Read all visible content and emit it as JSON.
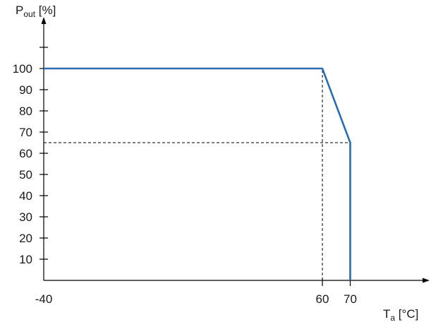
{
  "chart_data": {
    "type": "line",
    "title": "",
    "xlabel": {
      "main": "T",
      "sub": "a",
      "unit": " [°C]"
    },
    "ylabel": {
      "main": "P",
      "sub": "out",
      "unit": " [%]"
    },
    "xlim": [
      -40,
      80
    ],
    "ylim": [
      0,
      115
    ],
    "x_ticks": [
      -40,
      60,
      70
    ],
    "x_tick_labels": [
      "-40",
      "60",
      "70"
    ],
    "y_ticks": [
      10,
      20,
      30,
      40,
      50,
      60,
      70,
      80,
      90,
      100,
      110
    ],
    "y_tick_labels": [
      "10",
      "20",
      "30",
      "40",
      "50",
      "60",
      "70",
      "80",
      "90",
      "100",
      ""
    ],
    "grid": false,
    "series": [
      {
        "x": [
          -40,
          60,
          70,
          70
        ],
        "y": [
          100,
          100,
          65,
          0
        ]
      }
    ],
    "reference_lines": [
      {
        "from": [
          60,
          0
        ],
        "to": [
          60,
          100
        ]
      },
      {
        "from": [
          -40,
          65
        ],
        "to": [
          70,
          65
        ]
      }
    ],
    "colors": {
      "series": "#2a6db5",
      "axis": "#000000"
    }
  }
}
